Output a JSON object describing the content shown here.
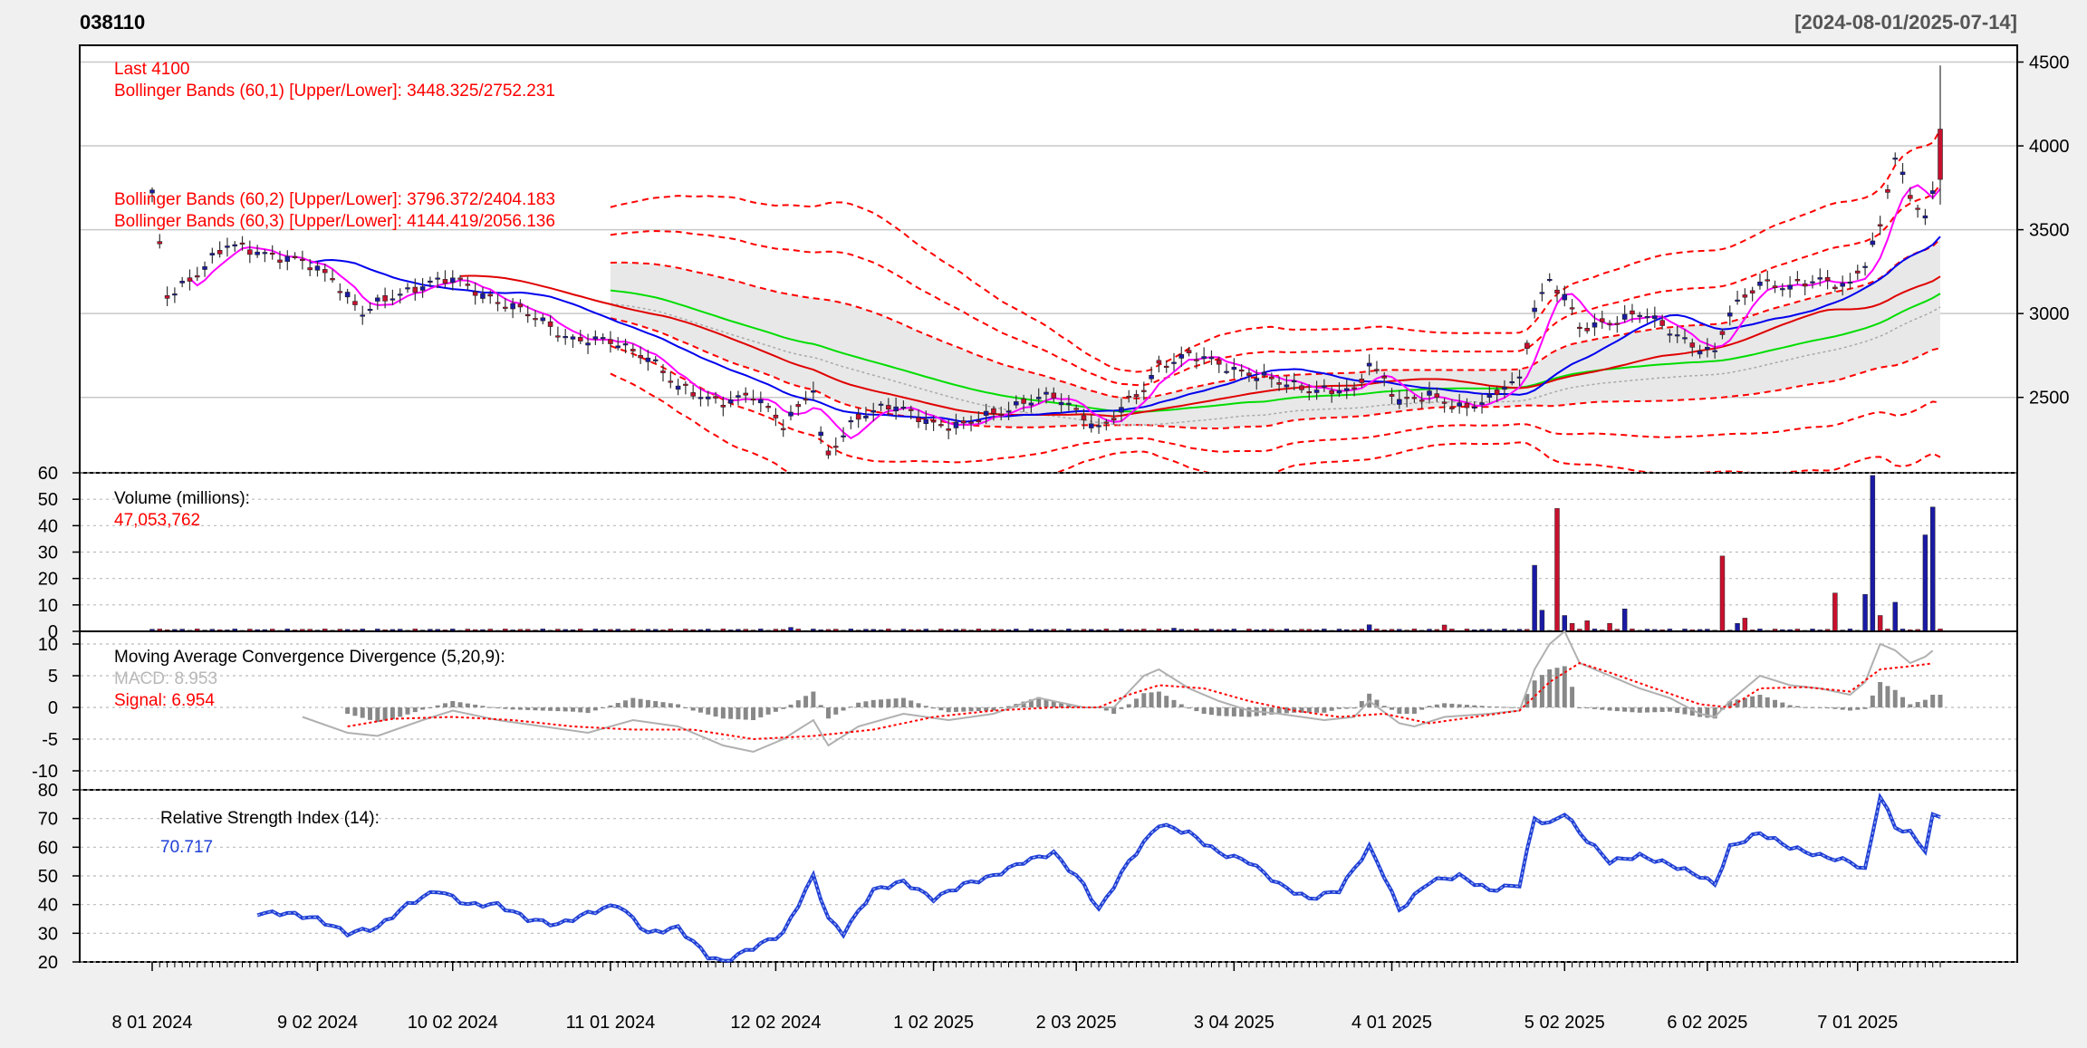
{
  "header": {
    "symbol": "038110",
    "date_range": "[2024-08-01/2025-07-14]"
  },
  "colors": {
    "background": "#f0f0f0",
    "panel_bg": "#ffffff",
    "up_candle": "#c8102e",
    "down_candle": "#1a1aa6",
    "annotation_red": "#ff0000",
    "macd_line": "#b0b0b0",
    "signal_line": "#ff0000",
    "rsi_line": "#1f3fd6",
    "ma_blue": "#0000ee",
    "ma_red": "#e00000",
    "ma_green": "#00dd00",
    "ma_magenta": "#ff00ff"
  },
  "chart_data": [
    {
      "panel": "price",
      "type": "candlestick",
      "ylim": [
        2050,
        4600
      ],
      "y_ticks": [
        "2500",
        "3000",
        "3500",
        "4000",
        "4500"
      ],
      "x_ticks": [
        "8 01 2024",
        "9 02 2024",
        "10 02 2024",
        "11 01 2024",
        "12 02 2024",
        "1 02 2025",
        "2 03 2025",
        "3 04 2025",
        "4 01 2025",
        "5 02 2025",
        "6 02 2025",
        "7 01 2025"
      ],
      "x_tick_positions": [
        0,
        22,
        40,
        61,
        83,
        104,
        123,
        144,
        165,
        188,
        207,
        227
      ],
      "n_bars": 239,
      "annotations": {
        "last": "Last 4100",
        "bb1": "Bollinger Bands (60,1) [Upper/Lower]: 3448.325/2752.231",
        "bb2": "Bollinger Bands (60,2) [Upper/Lower]: 3796.372/2404.183",
        "bb3": "Bollinger Bands (60,3) [Upper/Lower]: 4144.419/2056.136"
      },
      "price_path": [
        [
          0,
          3700
        ],
        [
          2,
          3100
        ],
        [
          6,
          3250
        ],
        [
          10,
          3400
        ],
        [
          14,
          3380
        ],
        [
          20,
          3300
        ],
        [
          24,
          3220
        ],
        [
          28,
          3000
        ],
        [
          32,
          3100
        ],
        [
          36,
          3180
        ],
        [
          40,
          3200
        ],
        [
          46,
          3080
        ],
        [
          52,
          2950
        ],
        [
          56,
          2850
        ],
        [
          62,
          2820
        ],
        [
          66,
          2750
        ],
        [
          70,
          2550
        ],
        [
          76,
          2480
        ],
        [
          80,
          2500
        ],
        [
          84,
          2350
        ],
        [
          88,
          2550
        ],
        [
          89,
          2250
        ],
        [
          90,
          2150
        ],
        [
          94,
          2400
        ],
        [
          98,
          2450
        ],
        [
          104,
          2350
        ],
        [
          108,
          2330
        ],
        [
          112,
          2400
        ],
        [
          116,
          2480
        ],
        [
          120,
          2500
        ],
        [
          124,
          2400
        ],
        [
          126,
          2320
        ],
        [
          128,
          2380
        ],
        [
          132,
          2550
        ],
        [
          134,
          2700
        ],
        [
          138,
          2750
        ],
        [
          142,
          2700
        ],
        [
          146,
          2650
        ],
        [
          150,
          2580
        ],
        [
          154,
          2560
        ],
        [
          158,
          2540
        ],
        [
          160,
          2520
        ],
        [
          162,
          2700
        ],
        [
          164,
          2620
        ],
        [
          166,
          2480
        ],
        [
          170,
          2500
        ],
        [
          174,
          2450
        ],
        [
          178,
          2480
        ],
        [
          180,
          2560
        ],
        [
          182,
          2600
        ],
        [
          184,
          3050
        ],
        [
          186,
          3200
        ],
        [
          188,
          3100
        ],
        [
          190,
          2900
        ],
        [
          194,
          2960
        ],
        [
          198,
          3000
        ],
        [
          202,
          2900
        ],
        [
          206,
          2800
        ],
        [
          208,
          2760
        ],
        [
          210,
          3000
        ],
        [
          214,
          3200
        ],
        [
          218,
          3150
        ],
        [
          222,
          3200
        ],
        [
          226,
          3180
        ],
        [
          228,
          3300
        ],
        [
          230,
          3500
        ],
        [
          232,
          3950
        ],
        [
          234,
          3700
        ],
        [
          236,
          3600
        ],
        [
          238,
          3800
        ],
        [
          239,
          4100
        ]
      ],
      "bollinger_bands": [
        {
          "name": "Bollinger Bands (60,1)",
          "upper": 3448.325,
          "lower": 2752.231
        },
        {
          "name": "Bollinger Bands (60,2)",
          "upper": 3796.372,
          "lower": 2404.183
        },
        {
          "name": "Bollinger Bands (60,3)",
          "upper": 4144.419,
          "lower": 2056.136
        }
      ],
      "last": 4100
    },
    {
      "panel": "volume",
      "type": "bar",
      "ylim": [
        0,
        60
      ],
      "y_ticks": [
        "0",
        "10",
        "20",
        "30",
        "40",
        "50",
        "60"
      ],
      "label": "Volume (millions):",
      "value_text": "47,053,762",
      "spikes": [
        [
          0,
          0.8
        ],
        [
          9,
          0.6
        ],
        [
          85,
          1.5
        ],
        [
          136,
          1.2
        ],
        [
          162,
          2.5
        ],
        [
          172,
          2.4
        ],
        [
          184,
          25
        ],
        [
          185,
          8
        ],
        [
          187,
          46.5
        ],
        [
          188,
          6
        ],
        [
          189,
          3
        ],
        [
          191,
          4
        ],
        [
          194,
          3
        ],
        [
          196,
          8.5
        ],
        [
          209,
          28.5
        ],
        [
          211,
          3
        ],
        [
          212,
          5
        ],
        [
          224,
          14.5
        ],
        [
          228,
          14
        ],
        [
          229,
          59
        ],
        [
          230,
          6
        ],
        [
          232,
          11
        ],
        [
          236,
          36.5
        ],
        [
          237,
          47.05
        ]
      ]
    },
    {
      "panel": "macd",
      "type": "line",
      "ylim": [
        -13,
        12
      ],
      "y_ticks": [
        "-10",
        "-5",
        "0",
        "5",
        "10"
      ],
      "label": "Moving Average Convergence Divergence (5,20,9):",
      "macd_text": "MACD: 8.953",
      "signal_text": "Signal: 6.954",
      "macd": [
        [
          20,
          -1.5
        ],
        [
          26,
          -4
        ],
        [
          30,
          -4.5
        ],
        [
          36,
          -2
        ],
        [
          40,
          -0.5
        ],
        [
          46,
          -2
        ],
        [
          52,
          -3
        ],
        [
          58,
          -4
        ],
        [
          64,
          -2
        ],
        [
          70,
          -3
        ],
        [
          76,
          -6
        ],
        [
          80,
          -7
        ],
        [
          84,
          -5
        ],
        [
          88,
          -2
        ],
        [
          90,
          -6
        ],
        [
          94,
          -3
        ],
        [
          100,
          -1
        ],
        [
          106,
          -2
        ],
        [
          112,
          -1
        ],
        [
          118,
          1.5
        ],
        [
          124,
          0
        ],
        [
          128,
          0
        ],
        [
          132,
          5
        ],
        [
          134,
          6
        ],
        [
          138,
          3
        ],
        [
          142,
          1
        ],
        [
          146,
          -0.5
        ],
        [
          150,
          -1
        ],
        [
          156,
          -2
        ],
        [
          160,
          -1.5
        ],
        [
          162,
          1
        ],
        [
          166,
          -2.5
        ],
        [
          168,
          -3
        ],
        [
          172,
          -1.5
        ],
        [
          178,
          -1
        ],
        [
          182,
          -0.5
        ],
        [
          184,
          6
        ],
        [
          186,
          10
        ],
        [
          188,
          12
        ],
        [
          190,
          7
        ],
        [
          194,
          5
        ],
        [
          198,
          3
        ],
        [
          202,
          1.5
        ],
        [
          206,
          -1
        ],
        [
          208,
          -1.5
        ],
        [
          210,
          1
        ],
        [
          214,
          5
        ],
        [
          218,
          3.5
        ],
        [
          222,
          3
        ],
        [
          226,
          2
        ],
        [
          228,
          4
        ],
        [
          230,
          10
        ],
        [
          232,
          9
        ],
        [
          234,
          7
        ],
        [
          236,
          8
        ],
        [
          237,
          8.953
        ]
      ],
      "signal": [
        [
          26,
          -3
        ],
        [
          32,
          -1.8
        ],
        [
          40,
          -1.5
        ],
        [
          48,
          -2
        ],
        [
          56,
          -3
        ],
        [
          64,
          -3.5
        ],
        [
          72,
          -3.5
        ],
        [
          80,
          -5
        ],
        [
          88,
          -4.5
        ],
        [
          96,
          -3.5
        ],
        [
          104,
          -1.5
        ],
        [
          112,
          -0.5
        ],
        [
          120,
          0
        ],
        [
          126,
          0
        ],
        [
          130,
          2
        ],
        [
          134,
          3.5
        ],
        [
          140,
          3
        ],
        [
          146,
          1
        ],
        [
          152,
          -0.5
        ],
        [
          158,
          -1.5
        ],
        [
          164,
          -1
        ],
        [
          170,
          -2.5
        ],
        [
          176,
          -1.5
        ],
        [
          182,
          -0.5
        ],
        [
          186,
          4
        ],
        [
          190,
          7
        ],
        [
          194,
          5.5
        ],
        [
          200,
          3
        ],
        [
          206,
          0.5
        ],
        [
          210,
          0
        ],
        [
          214,
          3
        ],
        [
          220,
          3.2
        ],
        [
          226,
          2.5
        ],
        [
          230,
          6
        ],
        [
          234,
          6.5
        ],
        [
          237,
          6.954
        ]
      ],
      "last_macd": 8.953,
      "last_signal": 6.954
    },
    {
      "panel": "rsi",
      "type": "line",
      "ylim": [
        20,
        80
      ],
      "y_ticks": [
        "20",
        "30",
        "40",
        "50",
        "60",
        "70",
        "80"
      ],
      "label": "Relative Strength Index (14):",
      "value_text": "70.717",
      "series": [
        [
          14,
          37
        ],
        [
          18,
          37
        ],
        [
          22,
          35
        ],
        [
          26,
          30
        ],
        [
          30,
          32
        ],
        [
          34,
          40
        ],
        [
          38,
          45
        ],
        [
          42,
          40
        ],
        [
          46,
          40
        ],
        [
          50,
          35
        ],
        [
          54,
          33
        ],
        [
          58,
          37
        ],
        [
          62,
          40
        ],
        [
          66,
          30
        ],
        [
          70,
          32
        ],
        [
          74,
          22
        ],
        [
          76,
          20
        ],
        [
          80,
          25
        ],
        [
          84,
          30
        ],
        [
          88,
          50
        ],
        [
          90,
          35
        ],
        [
          92,
          30
        ],
        [
          96,
          45
        ],
        [
          100,
          48
        ],
        [
          104,
          42
        ],
        [
          108,
          47
        ],
        [
          112,
          50
        ],
        [
          116,
          55
        ],
        [
          120,
          58
        ],
        [
          124,
          47
        ],
        [
          126,
          38
        ],
        [
          130,
          55
        ],
        [
          134,
          68
        ],
        [
          138,
          65
        ],
        [
          142,
          58
        ],
        [
          146,
          55
        ],
        [
          150,
          47
        ],
        [
          154,
          42
        ],
        [
          158,
          45
        ],
        [
          162,
          60
        ],
        [
          164,
          50
        ],
        [
          166,
          38
        ],
        [
          170,
          48
        ],
        [
          174,
          50
        ],
        [
          178,
          45
        ],
        [
          182,
          47
        ],
        [
          184,
          70
        ],
        [
          186,
          68
        ],
        [
          188,
          72
        ],
        [
          190,
          65
        ],
        [
          194,
          55
        ],
        [
          198,
          57
        ],
        [
          202,
          54
        ],
        [
          206,
          50
        ],
        [
          208,
          47
        ],
        [
          210,
          60
        ],
        [
          214,
          65
        ],
        [
          218,
          60
        ],
        [
          222,
          57
        ],
        [
          226,
          55
        ],
        [
          228,
          52
        ],
        [
          230,
          78
        ],
        [
          232,
          67
        ],
        [
          234,
          65
        ],
        [
          236,
          59
        ],
        [
          237,
          70.717
        ]
      ],
      "last": 70.717
    }
  ]
}
